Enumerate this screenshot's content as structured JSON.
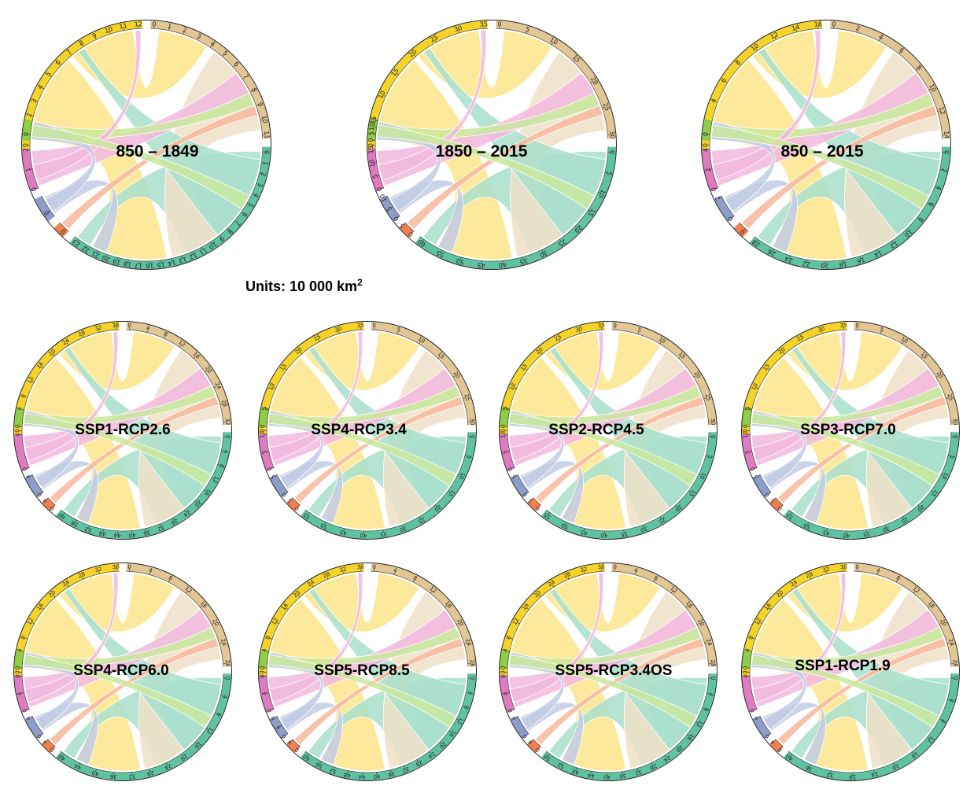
{
  "units": {
    "text": "Units: 10 000 km",
    "superscript": "2"
  },
  "categories": [
    {
      "key": "yellow",
      "color": "#f5d327",
      "ribbon": "#fbe58a"
    },
    {
      "key": "tan",
      "color": "#e2c694",
      "ribbon": "#f0e1c8"
    },
    {
      "key": "teal",
      "color": "#5fc3a2",
      "ribbon": "#a8dfcb"
    },
    {
      "key": "orange",
      "color": "#f37f4d",
      "ribbon": "#f8b89c"
    },
    {
      "key": "blue",
      "color": "#8c9dcb",
      "ribbon": "#c2cbe5"
    },
    {
      "key": "pink",
      "color": "#e07ac2",
      "ribbon": "#f2b9de"
    },
    {
      "key": "green",
      "color": "#8fcf45",
      "ribbon": "#c9e79e"
    }
  ],
  "panels": [
    {
      "label": "850 – 1849",
      "arcs": {
        "yellow": [
          0,
          1,
          2,
          3,
          4,
          5,
          6,
          7,
          8,
          9,
          10,
          11,
          12
        ],
        "tan": [
          0,
          1,
          2,
          3,
          4,
          5,
          6,
          7,
          8,
          9,
          10,
          11
        ],
        "teal": [
          0,
          1,
          2,
          3,
          4,
          5,
          6,
          7,
          8,
          9,
          10,
          11,
          12,
          13,
          14,
          15,
          16,
          17,
          18,
          19,
          20,
          21,
          22,
          23
        ],
        "orange": [
          0
        ],
        "blue": [
          0
        ],
        "pink": [
          0,
          1,
          2
        ],
        "green": [
          0
        ]
      }
    },
    {
      "label": "1850 – 2015",
      "arcs": {
        "yellow": [
          0,
          5,
          10,
          15,
          20,
          25,
          30,
          35
        ],
        "tan": [
          0,
          5,
          10,
          15,
          20,
          25,
          30
        ],
        "teal": [
          0,
          5,
          10,
          15,
          20,
          25,
          30,
          35,
          40,
          45,
          50,
          55,
          60
        ],
        "orange": [
          0,
          5
        ],
        "blue": [
          0,
          5,
          10
        ],
        "pink": [
          0,
          5,
          10,
          15
        ],
        "green": [
          0,
          5,
          10,
          15
        ]
      }
    },
    {
      "label": "850 – 2015",
      "arcs": {
        "yellow": [
          0,
          2,
          4,
          6,
          8,
          10,
          12,
          14,
          16
        ],
        "tan": [
          0,
          2,
          4,
          6,
          8,
          10,
          12,
          14
        ],
        "teal": [
          0,
          2,
          4,
          6,
          8,
          10,
          12,
          14,
          16,
          18,
          20,
          22,
          24,
          26,
          28
        ],
        "orange": [
          0
        ],
        "blue": [
          0,
          2
        ],
        "pink": [
          0,
          2,
          4
        ],
        "green": [
          0
        ]
      }
    },
    {
      "label": "SSP1-RCP2.6",
      "arcs": {
        "yellow": [
          0,
          4,
          8,
          12,
          16,
          20,
          24,
          28,
          32,
          36
        ],
        "tan": [
          0,
          4,
          8,
          12,
          16,
          20,
          24,
          28,
          32
        ],
        "teal": [
          0,
          4,
          8,
          12,
          16,
          20,
          24,
          28,
          32,
          36,
          40,
          44,
          48,
          52,
          56,
          60
        ],
        "orange": [
          0,
          4
        ],
        "blue": [
          0,
          4
        ],
        "pink": [
          0,
          4
        ],
        "green": [
          0,
          4
        ]
      }
    },
    {
      "label": "SSP4-RCP3.4",
      "arcs": {
        "yellow": [
          0,
          5,
          10,
          15,
          20,
          25,
          30,
          35
        ],
        "tan": [
          0,
          5,
          10,
          15,
          20,
          25,
          30
        ],
        "teal": [
          0,
          5,
          10,
          15,
          20,
          25,
          30,
          35,
          40,
          45,
          50,
          55
        ],
        "orange": [
          0,
          5
        ],
        "blue": [
          0,
          5
        ],
        "pink": [
          0,
          5,
          10
        ],
        "green": [
          0,
          5
        ]
      }
    },
    {
      "label": "SSP2-RCP4.5",
      "arcs": {
        "yellow": [
          0,
          5,
          10,
          15,
          20,
          25,
          30,
          35
        ],
        "tan": [
          0,
          5,
          10,
          15,
          20,
          25,
          30
        ],
        "teal": [
          0,
          5,
          10,
          15,
          20,
          25,
          30,
          35,
          40,
          45,
          50,
          55
        ],
        "orange": [
          0,
          5
        ],
        "blue": [
          0,
          5
        ],
        "pink": [
          0,
          5,
          10
        ],
        "green": [
          0,
          5
        ]
      }
    },
    {
      "label": "SSP3-RCP7.0",
      "arcs": {
        "yellow": [
          0,
          5,
          10,
          15,
          20,
          25,
          30,
          35
        ],
        "tan": [
          0,
          5,
          10,
          15,
          20,
          25,
          30
        ],
        "teal": [
          0,
          5,
          10,
          15,
          20,
          25,
          30,
          35,
          40,
          45,
          50,
          55
        ],
        "orange": [
          0,
          5
        ],
        "blue": [
          0,
          5
        ],
        "pink": [
          0,
          5,
          10
        ],
        "green": [
          0,
          5
        ]
      }
    },
    {
      "label": "SSP4-RCP6.0",
      "arcs": {
        "yellow": [
          0,
          4,
          8,
          12,
          16,
          20,
          24,
          28,
          32,
          36
        ],
        "tan": [
          0,
          4,
          8,
          12,
          16,
          20,
          24,
          28
        ],
        "teal": [
          0,
          4,
          8,
          12,
          16,
          20,
          24,
          28,
          32,
          36,
          40,
          44,
          48
        ],
        "orange": [
          0,
          4
        ],
        "blue": [
          0,
          4
        ],
        "pink": [
          0,
          4,
          8
        ],
        "green": [
          0,
          4
        ]
      }
    },
    {
      "label": "SSP5-RCP8.5",
      "arcs": {
        "yellow": [
          0,
          4,
          8,
          12,
          16,
          20,
          24,
          28,
          32,
          36
        ],
        "tan": [
          0,
          4,
          8,
          12,
          16,
          20,
          24,
          28
        ],
        "teal": [
          0,
          4,
          8,
          12,
          16,
          20,
          24,
          28,
          32,
          36,
          40,
          44,
          48,
          52,
          56,
          60
        ],
        "orange": [
          0,
          4
        ],
        "blue": [
          0,
          4,
          8
        ],
        "pink": [
          0,
          4,
          8
        ],
        "green": [
          0,
          4
        ]
      }
    },
    {
      "label": "SSP5-RCP3.4OS",
      "arcs": {
        "yellow": [
          0,
          4,
          8,
          12,
          16,
          20,
          24,
          28,
          32,
          36
        ],
        "tan": [
          0,
          4,
          8,
          12,
          16,
          20,
          24,
          28
        ],
        "teal": [
          0,
          4,
          8,
          12,
          16,
          20,
          24,
          28,
          32,
          36,
          40,
          44,
          48,
          52,
          56
        ],
        "orange": [
          0,
          4
        ],
        "blue": [
          0,
          4
        ],
        "pink": [
          0,
          4,
          8
        ],
        "green": [
          0,
          4
        ]
      }
    },
    {
      "label": "SSP1-RCP1.9",
      "arcs": {
        "yellow": [
          0,
          4,
          8,
          12,
          16,
          20,
          24,
          28,
          32,
          36
        ],
        "tan": [
          0,
          4,
          8,
          12,
          16,
          20,
          24,
          28
        ],
        "teal": [
          0,
          4,
          8,
          12,
          16,
          20,
          24,
          28,
          32,
          36,
          40
        ],
        "orange": [
          0,
          4
        ],
        "blue": [
          0,
          4
        ],
        "pink": [
          0,
          4
        ],
        "green": [
          0,
          4
        ]
      }
    }
  ]
}
